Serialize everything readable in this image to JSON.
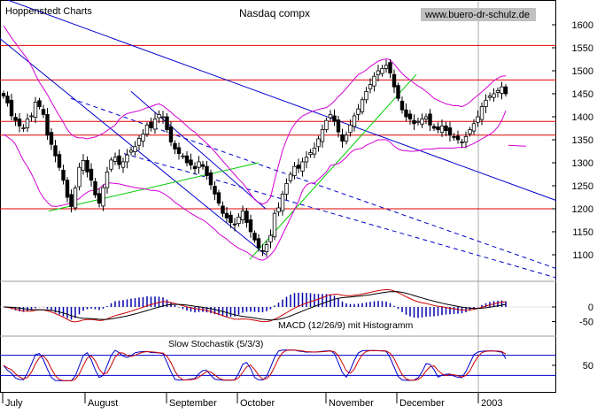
{
  "chart_data": [
    {
      "type": "candlestick",
      "panel": "price",
      "source_label": "Hoppenstedt Charts",
      "title": "Nasdaq compx",
      "website": "www.buero-dr-schulz.de",
      "y_ticks": [
        1100,
        1150,
        1200,
        1250,
        1300,
        1350,
        1400,
        1450,
        1500,
        1550,
        1600
      ],
      "ylim": [
        1050,
        1660
      ],
      "x_month_labels": [
        "July",
        "August",
        "September",
        "October",
        "November",
        "December",
        "2003"
      ],
      "horizontal_levels": [
        1555,
        1480,
        1390,
        1360,
        1200
      ],
      "closes": [
        1445,
        1430,
        1402,
        1392,
        1380,
        1376,
        1395,
        1402,
        1432,
        1422,
        1405,
        1360,
        1340,
        1315,
        1290,
        1262,
        1225,
        1205,
        1245,
        1290,
        1305,
        1280,
        1262,
        1230,
        1212,
        1246,
        1280,
        1306,
        1312,
        1296,
        1302,
        1317,
        1327,
        1335,
        1353,
        1362,
        1382,
        1376,
        1395,
        1405,
        1400,
        1372,
        1345,
        1330,
        1320,
        1315,
        1300,
        1295,
        1287,
        1302,
        1292,
        1272,
        1252,
        1232,
        1212,
        1190,
        1180,
        1170,
        1165,
        1182,
        1195,
        1170,
        1150,
        1132,
        1115,
        1107,
        1122,
        1142,
        1190,
        1202,
        1232,
        1255,
        1275,
        1292,
        1288,
        1302,
        1312,
        1322,
        1332,
        1352,
        1372,
        1392,
        1405,
        1390,
        1367,
        1347,
        1360,
        1382,
        1402,
        1417,
        1437,
        1455,
        1470,
        1488,
        1500,
        1505,
        1512,
        1495,
        1465,
        1440,
        1415,
        1400,
        1395,
        1385,
        1390,
        1395,
        1400,
        1382,
        1375,
        1372,
        1380,
        1370,
        1360,
        1355,
        1350,
        1345,
        1357,
        1372,
        1385,
        1400,
        1422,
        1436,
        1445,
        1450,
        1457,
        1465,
        1450
      ],
      "series": [
        {
          "name": "Upper Bollinger Band",
          "color": "#d400d4",
          "values": [
            1598,
            1585,
            1572,
            1560,
            1548,
            1537,
            1525,
            1510,
            1492,
            1475,
            1462,
            1448,
            1432,
            1417,
            1402,
            1388,
            1372,
            1362,
            1356,
            1354,
            1354,
            1352,
            1354,
            1356,
            1360,
            1364,
            1370,
            1376,
            1382,
            1394,
            1402,
            1407,
            1409,
            1411,
            1413,
            1416,
            1420,
            1422,
            1426,
            1428,
            1424,
            1417,
            1410,
            1402,
            1396,
            1388,
            1380,
            1372,
            1367,
            1357,
            1350,
            1342,
            1334,
            1324,
            1314,
            1304,
            1294,
            1284,
            1274,
            1264,
            1256,
            1244,
            1232,
            1220,
            1214,
            1210,
            1214,
            1225,
            1262,
            1295,
            1327,
            1350,
            1370,
            1384,
            1394,
            1402,
            1406,
            1410,
            1413,
            1416,
            1418,
            1420,
            1426,
            1434,
            1444,
            1452,
            1462,
            1472,
            1482,
            1492,
            1496,
            1502,
            1509,
            1515,
            1521,
            1524,
            1526,
            1524,
            1514,
            1504,
            1494,
            1486,
            1480,
            1473,
            1467,
            1462,
            1455,
            1448,
            1440,
            1436,
            1432,
            1428,
            1426,
            1424,
            1424,
            1422,
            1426,
            1432,
            1440,
            1447,
            1454,
            1462,
            1470,
            1478,
            1484,
            1488,
            1489
          ]
        },
        {
          "name": "Lower Bollinger Band",
          "color": "#d400d4",
          "values": [
            1362,
            1356,
            1350,
            1340,
            1322,
            1305,
            1292,
            1276,
            1258,
            1238,
            1224,
            1214,
            1206,
            1205,
            1206,
            1208,
            1210,
            1214,
            1218,
            1222,
            1230,
            1236,
            1240,
            1240,
            1244,
            1252,
            1256,
            1256,
            1255,
            1254,
            1252,
            1250,
            1248,
            1246,
            1245,
            1244,
            1242,
            1240,
            1240,
            1238,
            1234,
            1228,
            1222,
            1214,
            1208,
            1202,
            1196,
            1190,
            1185,
            1180,
            1176,
            1170,
            1162,
            1155,
            1146,
            1140,
            1134,
            1126,
            1120,
            1114,
            1110,
            1106,
            1100,
            1094,
            1090,
            1088,
            1092,
            1100,
            1110,
            1126,
            1144,
            1162,
            1180,
            1198,
            1216,
            1240,
            1252,
            1256,
            1256,
            1264,
            1272,
            1280,
            1294,
            1296,
            1298,
            1304,
            1312,
            1322,
            1328,
            1330,
            1332,
            1338,
            1342,
            1346,
            1350,
            1350,
            1350,
            1345,
            1336,
            1330,
            1327,
            1326,
            1325,
            1325,
            1326,
            1328,
            1330,
            1330,
            1330,
            1332,
            1332,
            1332,
            1332,
            1332,
            1333,
            1333,
            1334,
            1338,
            1342,
            1347,
            1352,
            1357,
            1362,
            1368,
            1378,
            1392,
            1413
          ]
        },
        {
          "name": "Lower Bollinger Band (post-2003 tail)",
          "color": "#d400d4",
          "values": [
            1338,
            1337,
            1336
          ]
        }
      ],
      "trendlines": [
        {
          "color": "#0000cc",
          "style": "solid",
          "from": [
            "start",
            1660
          ],
          "to": [
            "end",
            1218
          ]
        },
        {
          "color": "#0000cc",
          "style": "solid",
          "from": [
            "Jul",
            1570
          ],
          "to": [
            "Oct",
            1100
          ]
        },
        {
          "color": "#0000cc",
          "style": "solid",
          "from": [
            "Aug",
            1455
          ],
          "to": [
            "Oct",
            1200
          ]
        },
        {
          "color": "#0000cc",
          "style": "dashed",
          "from": [
            "Jul",
            1440
          ],
          "to": [
            "end",
            1070
          ]
        },
        {
          "color": "#0000cc",
          "style": "dashed",
          "from": [
            "Sep",
            1320
          ],
          "to": [
            "end",
            1050
          ]
        },
        {
          "color": "#00cc00",
          "style": "solid",
          "from": [
            "Jul",
            1195
          ],
          "to": [
            "Oct",
            1300
          ]
        },
        {
          "color": "#00cc00",
          "style": "solid",
          "from": [
            "Oct",
            1090
          ],
          "to": [
            "Dec",
            1492
          ]
        }
      ]
    },
    {
      "type": "line+histogram",
      "panel": "macd",
      "label": "MACD (12/26/9) mit Histogramm",
      "y_ticks": [
        0,
        -50
      ],
      "series": [
        {
          "name": "MACD",
          "color": "#cc0000"
        },
        {
          "name": "Signal",
          "color": "#000000"
        }
      ],
      "histogram_color": "#0000aa"
    },
    {
      "type": "line",
      "panel": "stochastic",
      "label": "Slow Stochastik (5/3/3)",
      "y_ticks": [
        50
      ],
      "levels": [
        80,
        20
      ],
      "series": [
        {
          "name": "%K",
          "color": "#0000cc"
        },
        {
          "name": "%D",
          "color": "#cc0000"
        }
      ]
    }
  ]
}
